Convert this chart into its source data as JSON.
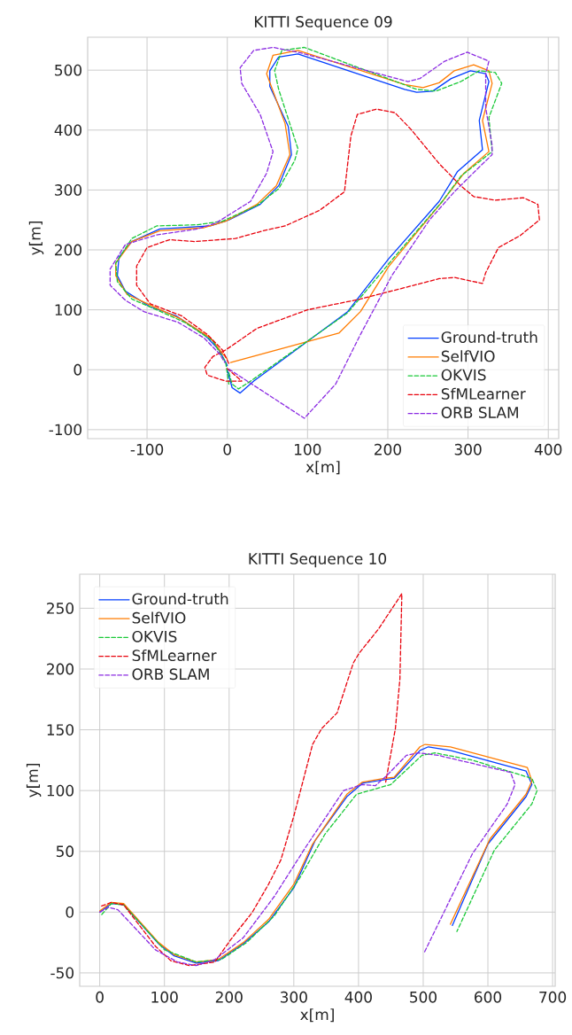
{
  "chart_data": [
    {
      "type": "line",
      "title": "KITTI Sequence 09",
      "xlabel": "x[m]",
      "ylabel": "y[m]",
      "xlim": [
        -174,
        413
      ],
      "ylim": [
        -115,
        555
      ],
      "xticks": [
        -100,
        0,
        100,
        200,
        300,
        400
      ],
      "yticks": [
        -100,
        0,
        100,
        200,
        300,
        400,
        500
      ],
      "grid": true,
      "legend": "bottom right",
      "series": [
        {
          "name": "Ground-truth",
          "color": "#023eff",
          "line_style": "solid",
          "x": [
            0,
            6,
            16,
            33,
            150,
            201,
            264,
            287,
            318,
            314,
            326,
            322,
            303,
            279,
            256,
            236,
            221,
            88,
            64,
            53,
            53,
            76,
            80,
            64,
            41,
            2,
            -21,
            -84,
            -119,
            -135,
            -137,
            -127,
            -96,
            -64,
            -29,
            -10,
            0
          ],
          "values": [
            0,
            -30,
            -39,
            -19,
            97,
            185,
            281,
            331,
            367,
            416,
            481,
            494,
            499,
            486,
            465,
            463,
            468,
            527,
            522,
            499,
            473,
            406,
            359,
            307,
            276,
            250,
            240,
            235,
            214,
            188,
            157,
            131,
            105,
            90,
            59,
            33,
            7
          ]
        },
        {
          "name": "SelfVIO",
          "color": "#ff7c00",
          "line_style": "solid",
          "x": [
            4,
            139,
            166,
            201,
            268,
            295,
            326,
            318,
            330,
            326,
            307,
            283,
            264,
            244,
            221,
            88,
            57,
            49,
            72,
            78,
            61,
            37,
            -2,
            -29,
            -84,
            -119,
            -139,
            -139,
            -125,
            -88,
            -57,
            -21,
            -6,
            0
          ],
          "values": [
            12,
            61,
            97,
            172,
            281,
            328,
            364,
            416,
            478,
            499,
            509,
            499,
            479,
            471,
            476,
            533,
            525,
            494,
            411,
            359,
            307,
            276,
            248,
            237,
            232,
            214,
            178,
            157,
            126,
            103,
            84,
            53,
            27,
            18
          ]
        },
        {
          "name": "OKVIS",
          "color": "#1ac938",
          "line_style": "dashed",
          "x": [
            2,
            6,
            14,
            29,
            150,
            205,
            268,
            291,
            330,
            326,
            342,
            334,
            314,
            291,
            260,
            236,
            96,
            68,
            59,
            64,
            88,
            84,
            64,
            37,
            -6,
            -37,
            -88,
            -119,
            -139,
            -137,
            -119,
            -88,
            -53,
            -18,
            -2,
            2
          ],
          "values": [
            -5,
            -24,
            -32,
            -19,
            95,
            183,
            281,
            323,
            364,
            421,
            478,
            496,
            499,
            481,
            465,
            468,
            538,
            533,
            499,
            468,
            369,
            349,
            302,
            274,
            248,
            242,
            240,
            219,
            178,
            147,
            118,
            100,
            79,
            48,
            12,
            -24
          ]
        },
        {
          "name": "SfMLearner",
          "color": "#e8000b",
          "line_style": "dashed",
          "x": [
            0,
            18,
            -2,
            -25,
            -28,
            -18,
            -2,
            37,
            100,
            166,
            264,
            283,
            318,
            322,
            338,
            365,
            389,
            387,
            369,
            334,
            307,
            291,
            264,
            229,
            209,
            186,
            162,
            154,
            146,
            115,
            72,
            45,
            10,
            -41,
            -72,
            -100,
            -113,
            -113,
            -96,
            -57,
            -25,
            -6,
            2
          ],
          "values": [
            2,
            -19,
            -19,
            -9,
            4,
            22,
            33,
            69,
            100,
            118,
            152,
            154,
            144,
            162,
            204,
            224,
            250,
            276,
            287,
            283,
            289,
            307,
            344,
            401,
            429,
            435,
            426,
            390,
            297,
            266,
            240,
            232,
            219,
            214,
            217,
            204,
            173,
            141,
            110,
            90,
            59,
            33,
            10
          ]
        },
        {
          "name": "ORB SLAM",
          "color": "#8b2be2",
          "line_style": "dashed",
          "x": [
            2,
            96,
            135,
            166,
            205,
            252,
            283,
            310,
            330,
            330,
            322,
            322,
            326,
            299,
            271,
            240,
            225,
            88,
            57,
            33,
            16,
            18,
            41,
            57,
            49,
            29,
            -14,
            -37,
            -88,
            -127,
            -146,
            -146,
            -127,
            -104,
            -61,
            -29,
            -10,
            -3
          ],
          "values": [
            1,
            -81,
            -24,
            59,
            157,
            250,
            297,
            333,
            359,
            375,
            437,
            494,
            515,
            530,
            515,
            486,
            481,
            530,
            538,
            533,
            504,
            478,
            426,
            364,
            328,
            281,
            245,
            235,
            225,
            209,
            168,
            141,
            116,
            97,
            79,
            53,
            27,
            12
          ]
        }
      ]
    },
    {
      "type": "line",
      "title": "KITTI Sequence 10",
      "xlabel": "x[m]",
      "ylabel": "y[m]",
      "xlim": [
        -31,
        704
      ],
      "ylim": [
        -61,
        278
      ],
      "xticks": [
        0,
        100,
        200,
        300,
        400,
        500,
        600,
        700
      ],
      "yticks": [
        -50,
        0,
        50,
        100,
        150,
        200,
        250
      ],
      "grid": true,
      "legend": "top left",
      "series": [
        {
          "name": "Ground-truth",
          "color": "#023eff",
          "line_style": "solid",
          "x": [
            0,
            18,
            37,
            91,
            115,
            149,
            183,
            222,
            261,
            300,
            333,
            382,
            406,
            440,
            455,
            495,
            508,
            542,
            659,
            668,
            659,
            600,
            545
          ],
          "values": [
            0,
            7,
            6,
            -26,
            -36,
            -42,
            -40,
            -26,
            -8,
            20,
            59,
            95,
            106,
            109,
            110,
            133,
            136,
            133,
            116,
            105,
            95,
            56,
            -11
          ]
        },
        {
          "name": "SelfVIO",
          "color": "#ff7c00",
          "line_style": "solid",
          "x": [
            0,
            18,
            37,
            91,
            115,
            149,
            183,
            222,
            261,
            300,
            329,
            382,
            406,
            440,
            455,
            495,
            503,
            542,
            661,
            668,
            659,
            603,
            542
          ],
          "values": [
            1,
            8,
            7,
            -25,
            -35,
            -41,
            -39,
            -25,
            -6,
            23,
            56,
            97,
            107,
            110,
            111,
            136,
            138,
            136,
            119,
            108,
            97,
            60,
            -10
          ]
        },
        {
          "name": "OKVIS",
          "color": "#1ac938",
          "line_style": "dashed",
          "x": [
            3,
            18,
            37,
            100,
            149,
            188,
            227,
            270,
            309,
            348,
            397,
            450,
            498,
            518,
            576,
            668,
            676,
            668,
            610,
            552
          ],
          "values": [
            -2,
            7,
            6,
            -31,
            -41,
            -39,
            -25,
            -3,
            28,
            64,
            97,
            105,
            129,
            131,
            125,
            110,
            100,
            89,
            51,
            -16
          ]
        },
        {
          "name": "SfMLearner",
          "color": "#e8000b",
          "line_style": "dashed",
          "x": [
            3,
            18,
            37,
            86,
            110,
            139,
            178,
            202,
            236,
            261,
            280,
            300,
            329,
            343,
            367,
            392,
            401,
            431,
            467,
            464,
            457,
            442
          ],
          "values": [
            5,
            8,
            6,
            -28,
            -40,
            -44,
            -41,
            -23,
            0,
            23,
            43,
            79,
            138,
            151,
            164,
            205,
            213,
            233,
            262,
            192,
            151,
            107
          ]
        },
        {
          "name": "ORB SLAM",
          "color": "#8b2be2",
          "line_style": "dashed",
          "x": [
            0,
            13,
            28,
            86,
            120,
            149,
            178,
            222,
            270,
            319,
            377,
            406,
            426,
            445,
            474,
            493,
            523,
            635,
            642,
            630,
            576,
            501
          ],
          "values": [
            0,
            4,
            2,
            -31,
            -41,
            -44,
            -39,
            -21,
            13,
            54,
            100,
            105,
            104,
            113,
            129,
            131,
            129,
            115,
            105,
            89,
            48,
            -34
          ]
        }
      ]
    }
  ]
}
